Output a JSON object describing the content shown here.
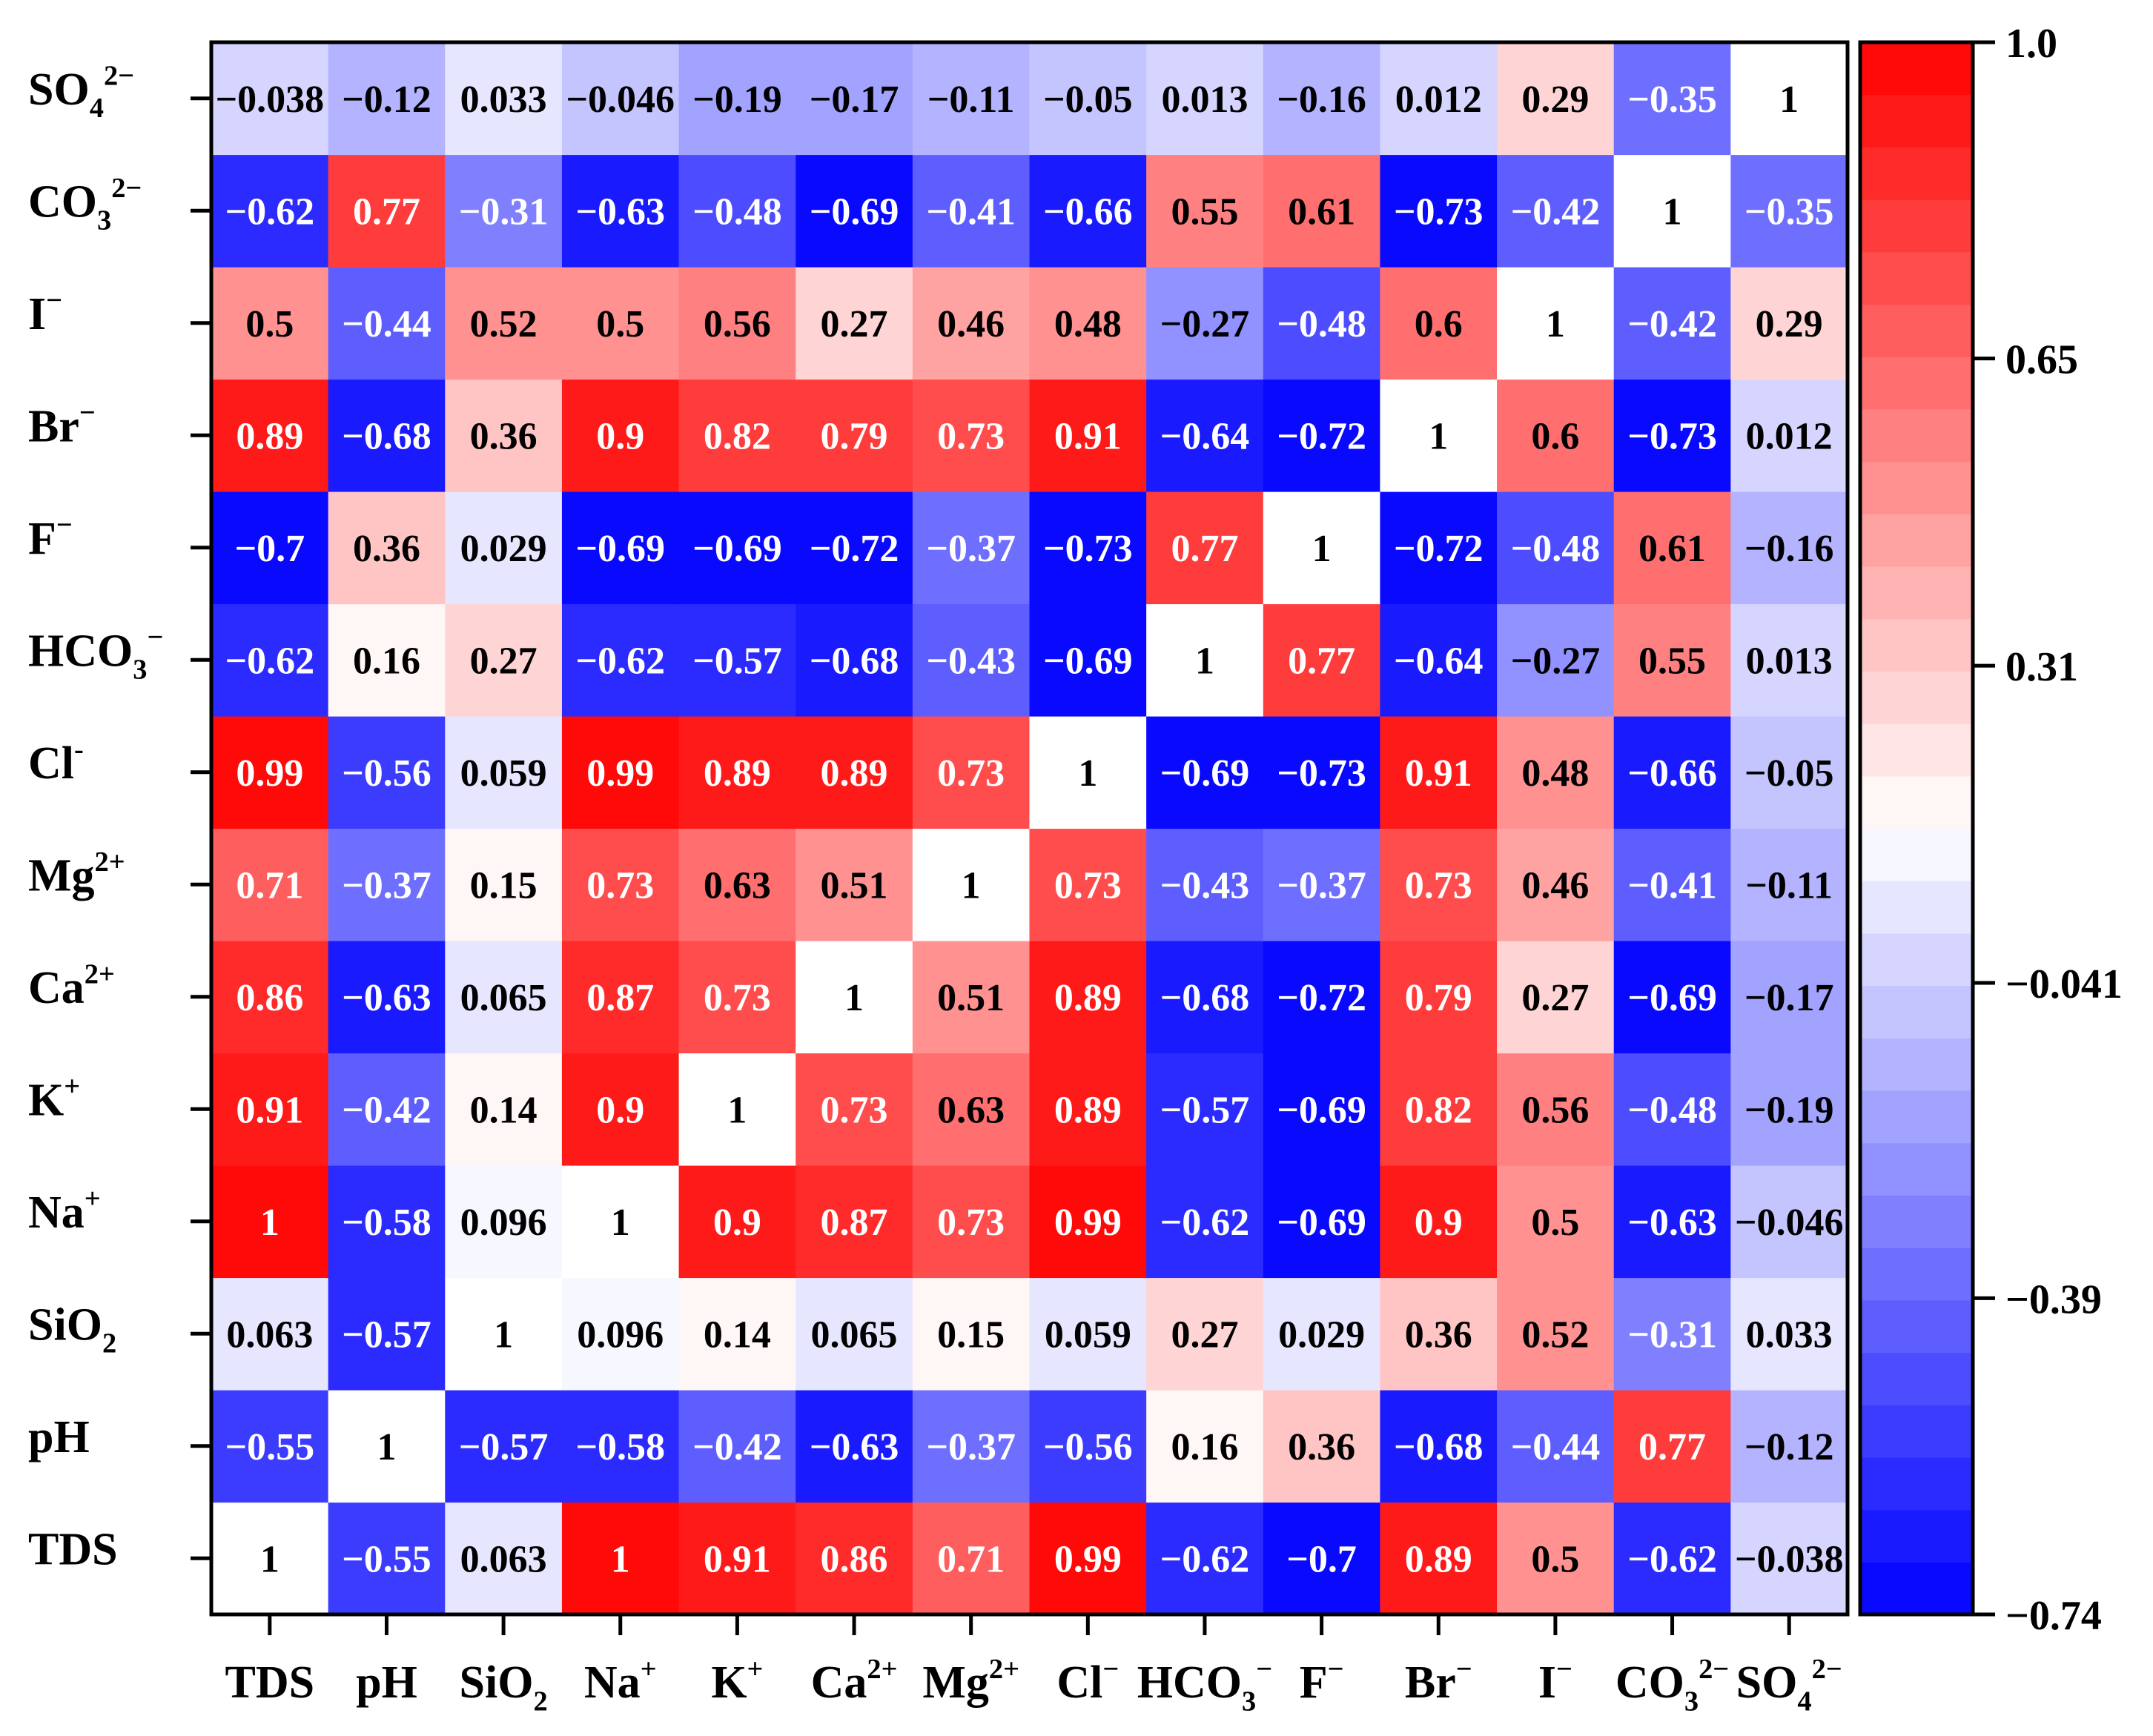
{
  "chart_data": {
    "type": "heatmap",
    "variables": [
      "TDS",
      "pH",
      "SiO2",
      "Na+",
      "K+",
      "Ca2+",
      "Mg2+",
      "Cl−",
      "HCO3−",
      "F−",
      "Br−",
      "I−",
      "CO32−",
      "SO42−"
    ],
    "x_tick_labels": [
      {
        "base": "TDS",
        "sub": "",
        "sup": ""
      },
      {
        "base": "pH",
        "sub": "",
        "sup": ""
      },
      {
        "base": "SiO",
        "sub": "2",
        "sup": ""
      },
      {
        "base": "Na",
        "sub": "",
        "sup": "+"
      },
      {
        "base": "K",
        "sub": "",
        "sup": "+"
      },
      {
        "base": "Ca",
        "sub": "",
        "sup": "2+"
      },
      {
        "base": "Mg",
        "sub": "",
        "sup": "2+"
      },
      {
        "base": "Cl",
        "sub": "",
        "sup": "−"
      },
      {
        "base": "HCO",
        "sub": "3",
        "sup": "−"
      },
      {
        "base": "F",
        "sub": "",
        "sup": "−"
      },
      {
        "base": "Br",
        "sub": "",
        "sup": "−"
      },
      {
        "base": "I",
        "sub": "",
        "sup": "−"
      },
      {
        "base": "CO",
        "sub": "3",
        "sup": "2−"
      },
      {
        "base": "SO",
        "sub": "4",
        "sup": "2−"
      }
    ],
    "y_tick_labels": [
      {
        "base": "TDS",
        "sub": "",
        "sup": ""
      },
      {
        "base": "pH",
        "sub": "",
        "sup": ""
      },
      {
        "base": "SiO",
        "sub": "2",
        "sup": ""
      },
      {
        "base": "Na",
        "sub": "",
        "sup": "+"
      },
      {
        "base": "K",
        "sub": "",
        "sup": "+"
      },
      {
        "base": "Ca",
        "sub": "",
        "sup": "2+"
      },
      {
        "base": "Mg",
        "sub": "",
        "sup": "2+"
      },
      {
        "base": "Cl",
        "sub": "",
        "sup": "-"
      },
      {
        "base": "HCO",
        "sub": "3",
        "sup": "−"
      },
      {
        "base": "F",
        "sub": "",
        "sup": "−"
      },
      {
        "base": "Br",
        "sub": "",
        "sup": "−"
      },
      {
        "base": "I",
        "sub": "",
        "sup": "−"
      },
      {
        "base": "CO",
        "sub": "3",
        "sup": "2−"
      },
      {
        "base": "SO",
        "sub": "4",
        "sup": "2−"
      }
    ],
    "values": [
      [
        "1",
        "-0.55",
        "0.063",
        "1",
        "0.91",
        "0.86",
        "0.71",
        "0.99",
        "-0.62",
        "-0.7",
        "0.89",
        "0.5",
        "-0.62",
        "-0.038"
      ],
      [
        "-0.55",
        "1",
        "-0.57",
        "-0.58",
        "-0.42",
        "-0.63",
        "-0.37",
        "-0.56",
        "0.16",
        "0.36",
        "-0.68",
        "-0.44",
        "0.77",
        "-0.12"
      ],
      [
        "0.063",
        "-0.57",
        "1",
        "0.096",
        "0.14",
        "0.065",
        "0.15",
        "0.059",
        "0.27",
        "0.029",
        "0.36",
        "0.52",
        "-0.31",
        "0.033"
      ],
      [
        "1",
        "-0.58",
        "0.096",
        "1",
        "0.9",
        "0.87",
        "0.73",
        "0.99",
        "-0.62",
        "-0.69",
        "0.9",
        "0.5",
        "-0.63",
        "-0.046"
      ],
      [
        "0.91",
        "-0.42",
        "0.14",
        "0.9",
        "1",
        "0.73",
        "0.63",
        "0.89",
        "-0.57",
        "-0.69",
        "0.82",
        "0.56",
        "-0.48",
        "-0.19"
      ],
      [
        "0.86",
        "-0.63",
        "0.065",
        "0.87",
        "0.73",
        "1",
        "0.51",
        "0.89",
        "-0.68",
        "-0.72",
        "0.79",
        "0.27",
        "-0.69",
        "-0.17"
      ],
      [
        "0.71",
        "-0.37",
        "0.15",
        "0.73",
        "0.63",
        "0.51",
        "1",
        "0.73",
        "-0.43",
        "-0.37",
        "0.73",
        "0.46",
        "-0.41",
        "-0.11"
      ],
      [
        "0.99",
        "-0.56",
        "0.059",
        "0.99",
        "0.89",
        "0.89",
        "0.73",
        "1",
        "-0.69",
        "-0.73",
        "0.91",
        "0.48",
        "-0.66",
        "-0.05"
      ],
      [
        "-0.62",
        "0.16",
        "0.27",
        "-0.62",
        "-0.57",
        "-0.68",
        "-0.43",
        "-0.69",
        "1",
        "0.77",
        "-0.64",
        "-0.27",
        "0.55",
        "0.013"
      ],
      [
        "-0.7",
        "0.36",
        "0.029",
        "-0.69",
        "-0.69",
        "-0.72",
        "-0.37",
        "-0.73",
        "0.77",
        "1",
        "-0.72",
        "-0.48",
        "0.61",
        "-0.16"
      ],
      [
        "0.89",
        "-0.68",
        "0.36",
        "0.9",
        "0.82",
        "0.79",
        "0.73",
        "0.91",
        "-0.64",
        "-0.72",
        "1",
        "0.6",
        "-0.73",
        "0.012"
      ],
      [
        "0.5",
        "-0.44",
        "0.52",
        "0.5",
        "0.56",
        "0.27",
        "0.46",
        "0.48",
        "-0.27",
        "-0.48",
        "0.6",
        "1",
        "-0.42",
        "0.29"
      ],
      [
        "-0.62",
        "0.77",
        "-0.31",
        "-0.63",
        "-0.48",
        "-0.69",
        "-0.41",
        "-0.66",
        "0.55",
        "0.61",
        "-0.73",
        "-0.42",
        "1",
        "-0.35"
      ],
      [
        "-0.038",
        "-0.12",
        "0.033",
        "-0.046",
        "-0.19",
        "-0.17",
        "-0.11",
        "-0.05",
        "0.013",
        "-0.16",
        "0.012",
        "0.29",
        "-0.35",
        "1"
      ]
    ],
    "diagonal_color": "#ffffff",
    "colorbar": {
      "min": -0.74,
      "max": 1.0,
      "ticks": [
        "1.0",
        "0.65",
        "0.31",
        "-0.041",
        "-0.39",
        "-0.74"
      ],
      "tick_values": [
        1.0,
        0.65,
        0.31,
        -0.041,
        -0.39,
        -0.74
      ],
      "bands": 30,
      "low_color": "#0000ff",
      "mid_color": "#ffffff",
      "high_color": "#ff0000"
    },
    "row_order": "TDS at bottom, SO42− at top",
    "grid": false,
    "legend": "colorbar at right",
    "title": "",
    "xlabel": "",
    "ylabel": ""
  }
}
